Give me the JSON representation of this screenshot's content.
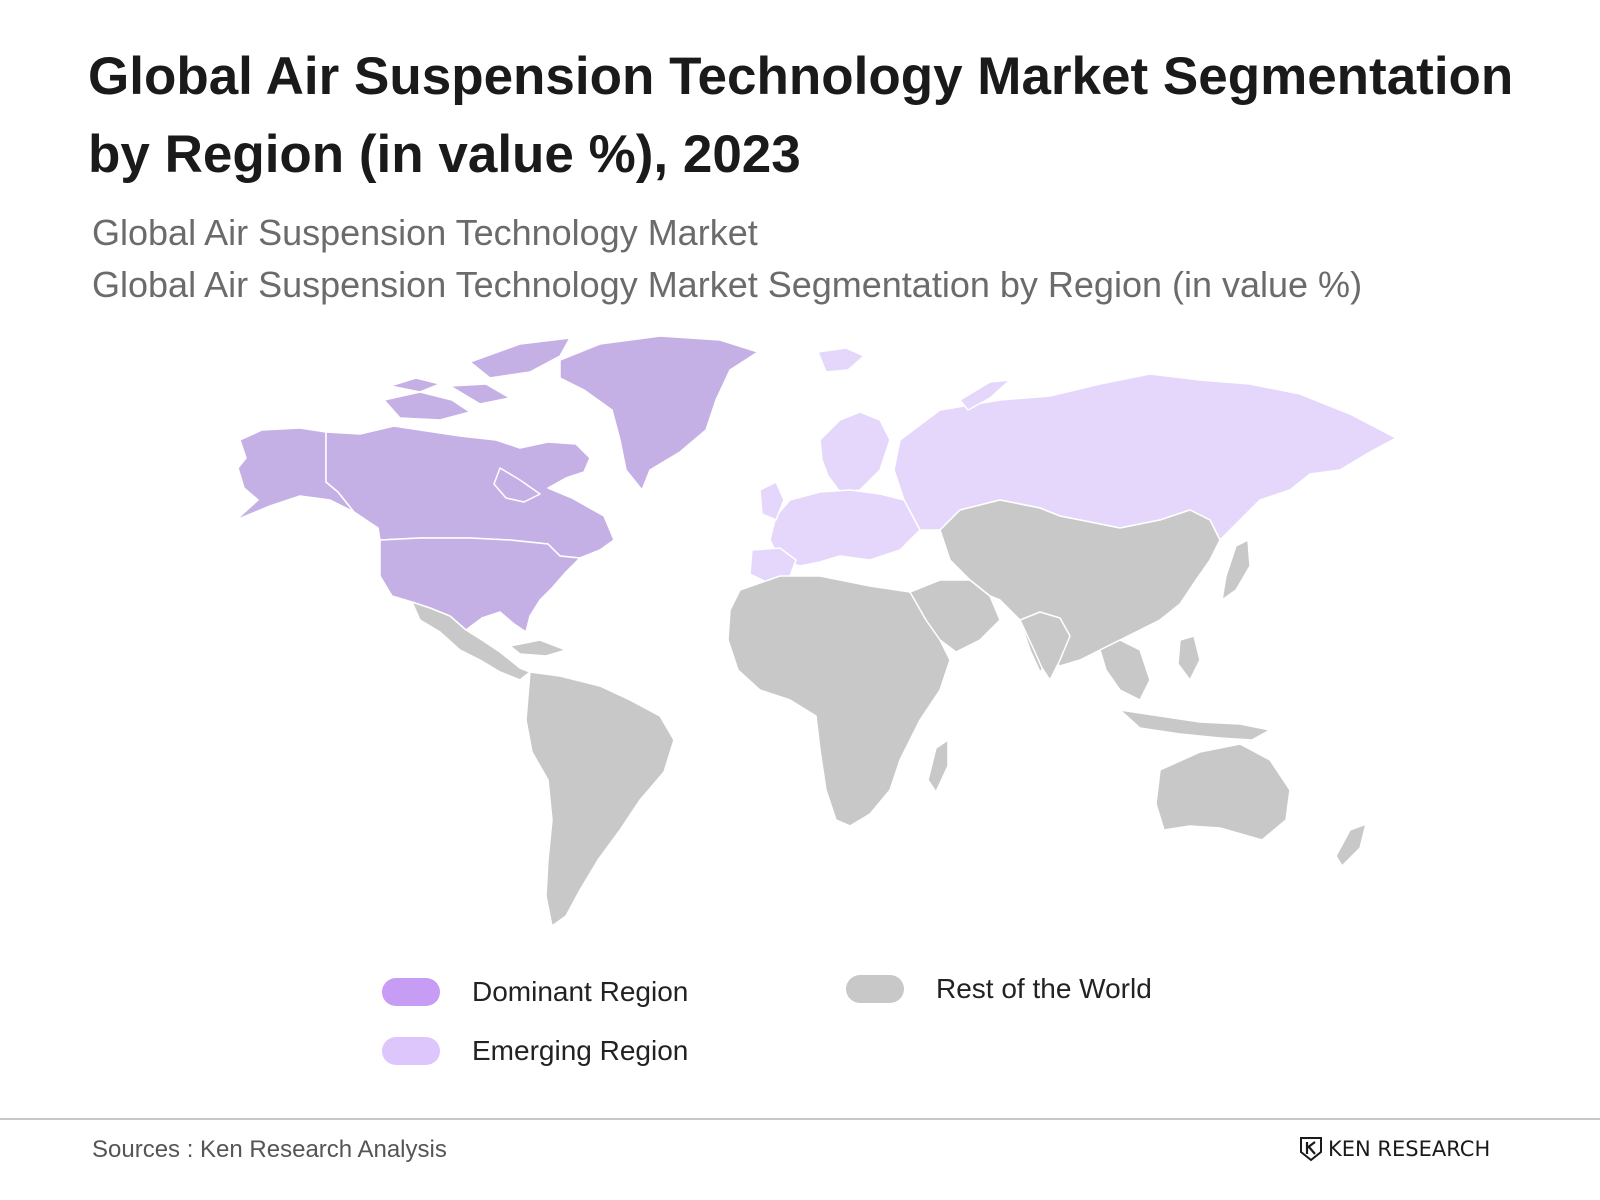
{
  "title": "Global Air Suspension Technology Market Segmentation by Region (in value %), 2023",
  "subtitle_1": "Global Air Suspension Technology Market",
  "subtitle_2": "Global Air Suspension Technology Market Segmentation by Region (in value %)",
  "map": {
    "dominant_color": "#c5b0e6",
    "emerging_color": "#e4d7fb",
    "rest_color": "#c8c8c8",
    "border_color": "#ffffff"
  },
  "legend": {
    "dominant": {
      "label": "Dominant Region",
      "color": "#c79cf5"
    },
    "emerging": {
      "label": "Emerging Region",
      "color": "#dcc6fb"
    },
    "rest": {
      "label": "Rest of the World",
      "color": "#c8c8c8"
    }
  },
  "footer": {
    "sources": "Sources : Ken Research Analysis",
    "brand": "KEN RESEARCH"
  }
}
